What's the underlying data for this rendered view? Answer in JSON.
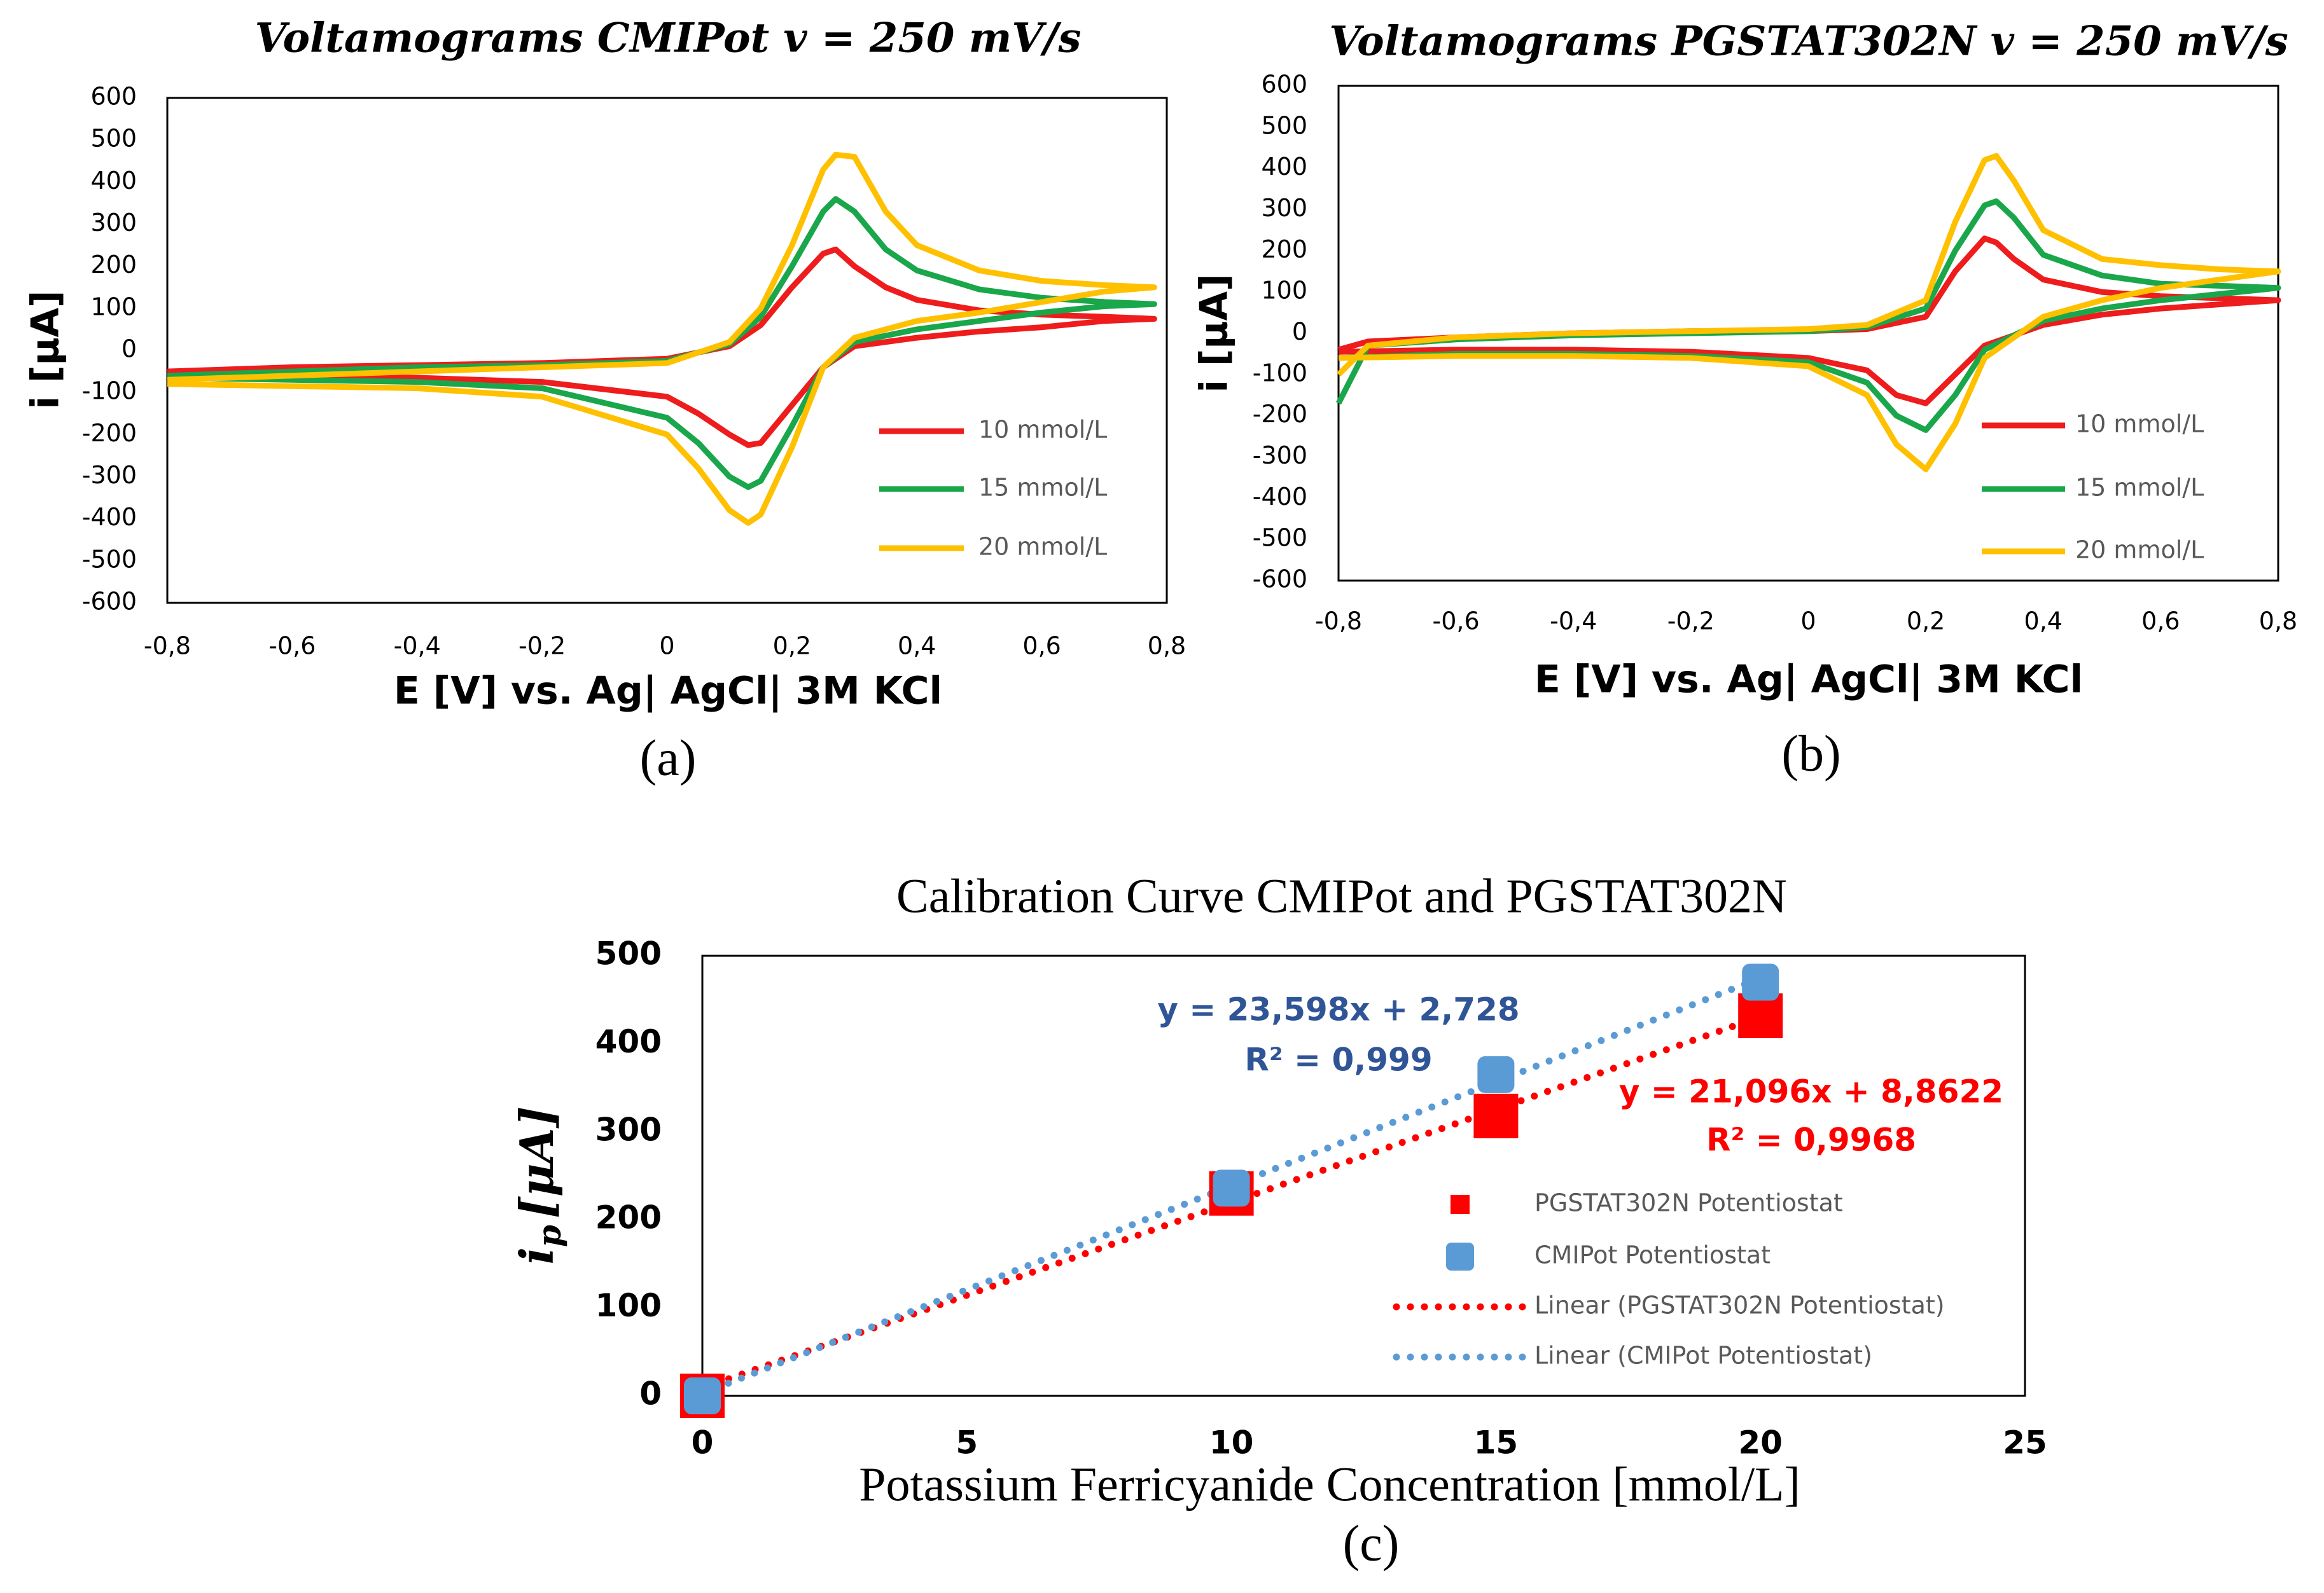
{
  "chart_data": [
    {
      "type": "line",
      "title": "Voltamograms CMIPot v = 250 mV/s",
      "caption": "(a)",
      "x_label": "E [V] vs. Ag| AgCl| 3M KCl",
      "y_label": "i [µA]",
      "xlim": [
        -0.8,
        0.8
      ],
      "ylim": [
        -600,
        600
      ],
      "grid": false,
      "xticks": [
        {
          "value": -0.8,
          "label": "-0,8"
        },
        {
          "value": -0.6,
          "label": "-0,6"
        },
        {
          "value": -0.4,
          "label": "-0,4"
        },
        {
          "value": -0.2,
          "label": "-0,2"
        },
        0,
        {
          "value": 0.2,
          "label": "0,2"
        },
        {
          "value": 0.4,
          "label": "0,4"
        },
        {
          "value": 0.6,
          "label": "0,6"
        },
        {
          "value": 0.8,
          "label": "0,8"
        }
      ],
      "yticks": [
        600,
        500,
        400,
        300,
        200,
        100,
        0,
        -100,
        -200,
        -300,
        -400,
        -500,
        -600
      ],
      "x": [
        -0.8,
        -0.6,
        -0.4,
        -0.2,
        0,
        0.1,
        0.15,
        0.2,
        0.25,
        0.27,
        0.3,
        0.35,
        0.4,
        0.5,
        0.6,
        0.7,
        0.78,
        0.7,
        0.6,
        0.5,
        0.4,
        0.3,
        0.25,
        0.2,
        0.15,
        0.13,
        0.1,
        0.05,
        0,
        -0.2,
        -0.4,
        -0.6,
        -0.8
      ],
      "series": [
        {
          "name": "10 mmol/L",
          "color": "#ee1c1c",
          "values": [
            -50,
            -40,
            -35,
            -30,
            -20,
            10,
            60,
            150,
            230,
            240,
            200,
            150,
            120,
            95,
            85,
            80,
            75,
            70,
            55,
            45,
            30,
            10,
            -40,
            -130,
            -220,
            -225,
            -200,
            -150,
            -110,
            -75,
            -65,
            -60,
            -55
          ]
        },
        {
          "name": "15 mmol/L",
          "color": "#1aa64a",
          "values": [
            -60,
            -50,
            -40,
            -35,
            -25,
            15,
            80,
            200,
            330,
            360,
            330,
            240,
            190,
            145,
            125,
            115,
            110,
            105,
            90,
            70,
            50,
            20,
            -40,
            -180,
            -310,
            -325,
            -300,
            -220,
            -160,
            -90,
            -75,
            -70,
            -65
          ]
        },
        {
          "name": "20 mmol/L",
          "color": "#ffc000",
          "values": [
            -70,
            -60,
            -50,
            -40,
            -30,
            20,
            100,
            250,
            430,
            465,
            460,
            330,
            250,
            190,
            165,
            155,
            150,
            140,
            115,
            90,
            70,
            30,
            -40,
            -230,
            -390,
            -410,
            -380,
            -280,
            -200,
            -110,
            -90,
            -85,
            -80
          ]
        }
      ]
    },
    {
      "type": "line",
      "title": "Voltamograms PGSTAT302N v = 250 mV/s",
      "caption": "(b)",
      "x_label": "E [V] vs. Ag| AgCl| 3M KCl",
      "y_label": "i [µA]",
      "xlim": [
        -0.8,
        0.8
      ],
      "ylim": [
        -600,
        600
      ],
      "grid": false,
      "xticks": [
        {
          "value": -0.8,
          "label": "-0,8"
        },
        {
          "value": -0.6,
          "label": "-0,6"
        },
        {
          "value": -0.4,
          "label": "-0,4"
        },
        {
          "value": -0.2,
          "label": "-0,2"
        },
        0,
        {
          "value": 0.2,
          "label": "0,2"
        },
        {
          "value": 0.4,
          "label": "0,4"
        },
        {
          "value": 0.6,
          "label": "0,6"
        },
        {
          "value": 0.8,
          "label": "0,8"
        }
      ],
      "yticks": [
        600,
        500,
        400,
        300,
        200,
        100,
        0,
        -100,
        -200,
        -300,
        -400,
        -500,
        -600
      ],
      "x": [
        -0.8,
        -0.75,
        -0.6,
        -0.4,
        -0.2,
        0,
        0.1,
        0.2,
        0.25,
        0.3,
        0.32,
        0.35,
        0.4,
        0.5,
        0.6,
        0.7,
        0.8,
        0.7,
        0.6,
        0.5,
        0.4,
        0.3,
        0.25,
        0.2,
        0.15,
        0.1,
        0,
        -0.2,
        -0.4,
        -0.6,
        -0.8
      ],
      "series": [
        {
          "name": "10 mmol/L",
          "color": "#ee1c1c",
          "values": [
            -40,
            -20,
            -10,
            0,
            5,
            5,
            10,
            40,
            150,
            230,
            220,
            180,
            130,
            100,
            90,
            85,
            80,
            70,
            60,
            45,
            20,
            -30,
            -100,
            -170,
            -150,
            -90,
            -60,
            -45,
            -40,
            -40,
            -45
          ]
        },
        {
          "name": "15 mmol/L",
          "color": "#1aa64a",
          "values": [
            -170,
            -30,
            -15,
            -5,
            0,
            5,
            15,
            60,
            200,
            310,
            320,
            280,
            190,
            140,
            120,
            115,
            110,
            95,
            80,
            60,
            30,
            -40,
            -150,
            -235,
            -200,
            -120,
            -70,
            -55,
            -50,
            -50,
            -60
          ]
        },
        {
          "name": "20 mmol/L",
          "color": "#ffc000",
          "values": [
            -100,
            -30,
            -10,
            0,
            5,
            10,
            20,
            80,
            270,
            420,
            430,
            370,
            250,
            180,
            165,
            155,
            150,
            130,
            110,
            80,
            40,
            -60,
            -220,
            -330,
            -270,
            -150,
            -80,
            -60,
            -55,
            -55,
            -60
          ]
        }
      ]
    },
    {
      "type": "scatter",
      "title": "Calibration Curve CMIPot and PGSTAT302N",
      "caption": "(c)",
      "x_label": "Potassium Ferricyanide Concentration [mmol/L]",
      "y_label": {
        "main": "i",
        "sub": "p",
        "rest": "[μA]"
      },
      "xlim": [
        0,
        25
      ],
      "ylim": [
        0,
        500
      ],
      "grid": false,
      "xticks": [
        0,
        5,
        10,
        15,
        20,
        25
      ],
      "yticks": [
        0,
        100,
        200,
        300,
        400,
        500
      ],
      "x": [
        0,
        10,
        15,
        20
      ],
      "series": [
        {
          "name": "PGSTAT302N Potentiostat",
          "color": "#ff0000",
          "marker": "square",
          "values": [
            0,
            230,
            318,
            432
          ]
        },
        {
          "name": "CMIPot Potentiostat",
          "color": "#5b9bd5",
          "marker": "rounded",
          "values": [
            0,
            236,
            365,
            470
          ]
        },
        {
          "name": "Linear (PGSTAT302N Potentiostat)",
          "color": "#ff0000",
          "style": "dotted",
          "x": [
            0,
            20
          ],
          "values": [
            8.9,
            430.8
          ]
        },
        {
          "name": "Linear (CMIPot Potentiostat)",
          "color": "#5b9bd5",
          "style": "dotted",
          "x": [
            0,
            20
          ],
          "values": [
            2.7,
            474.7
          ]
        }
      ],
      "annotations": [
        {
          "text": "y = 23,598x + 2,728",
          "color": "#2f5597"
        },
        {
          "text": "R² = 0,999",
          "color": "#2f5597"
        },
        {
          "text": "y = 21,096x + 8,8622",
          "color": "#ff0000"
        },
        {
          "text": "R² = 0,9968",
          "color": "#ff0000"
        }
      ]
    }
  ]
}
